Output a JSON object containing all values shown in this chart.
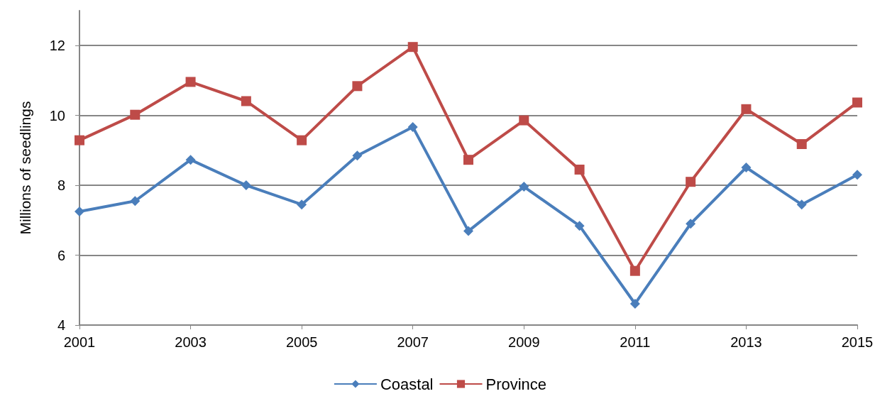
{
  "chart_data": {
    "type": "line",
    "ylabel": "Millions of seedlings",
    "x": [
      2001,
      2002,
      2003,
      2004,
      2005,
      2006,
      2007,
      2008,
      2009,
      2010,
      2011,
      2012,
      2013,
      2014,
      2015
    ],
    "xlim": [
      2001,
      2015
    ],
    "xticks": [
      2001,
      2003,
      2005,
      2007,
      2009,
      2011,
      2013,
      2015
    ],
    "ylim": [
      4,
      13
    ],
    "yticks": [
      4,
      6,
      8,
      10,
      12
    ],
    "grid": "y",
    "legend": "bottom",
    "series": [
      {
        "name": "Coastal",
        "color": "#4a7ebb",
        "marker": "diamond",
        "values": [
          7.25,
          7.55,
          8.73,
          8.0,
          7.45,
          8.85,
          9.67,
          6.69,
          7.96,
          6.84,
          4.61,
          6.9,
          8.51,
          7.45,
          8.3
        ]
      },
      {
        "name": "Province",
        "color": "#be4b48",
        "marker": "square",
        "values": [
          9.29,
          10.02,
          10.96,
          10.41,
          9.29,
          10.84,
          11.96,
          8.73,
          9.86,
          8.45,
          5.55,
          8.1,
          10.18,
          9.18,
          10.37
        ]
      }
    ]
  }
}
